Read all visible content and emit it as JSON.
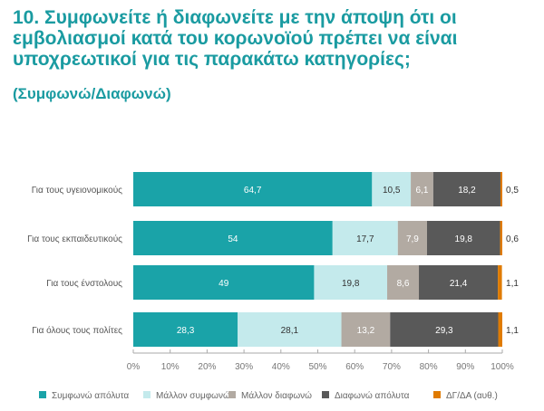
{
  "title": "10. Συμφωνείτε ή διαφωνείτε με την άποψη ότι οι εμβολιασμοί κατά του κορωνοϊού πρέπει να είναι υποχρεωτικοί για τις παρακάτω κατηγορίες;",
  "subtitle": "(Συμφωνώ/Διαφωνώ)",
  "chart_data": {
    "type": "bar",
    "orientation": "horizontal",
    "stacked": "percent",
    "categories": [
      "Για τους υγειονομικούς",
      "Για τους εκπαιδευτικούς",
      "Για τους ένστολους",
      "Για όλους τους πολίτες"
    ],
    "series": [
      {
        "name": "Συμφωνώ απόλυτα",
        "color": "#1aa3a8",
        "values": [
          64.7,
          54,
          49,
          28.3
        ],
        "labels": [
          "64,7",
          "54",
          "49",
          "28,3"
        ]
      },
      {
        "name": "Μάλλον συμφωνώ",
        "color": "#c4eaec",
        "values": [
          10.5,
          17.7,
          19.8,
          28.1
        ],
        "labels": [
          "10,5",
          "17,7",
          "19,8",
          "28,1"
        ]
      },
      {
        "name": "Μάλλον διαφωνώ",
        "color": "#b2aaa2",
        "values": [
          6.1,
          7.9,
          8.6,
          13.2
        ],
        "labels": [
          "6,1",
          "7,9",
          "8,6",
          "13,2"
        ]
      },
      {
        "name": "Διαφωνώ απόλυτα",
        "color": "#595959",
        "values": [
          18.2,
          19.8,
          21.4,
          29.3
        ],
        "labels": [
          "18,2",
          "19,8",
          "21,4",
          "29,3"
        ]
      },
      {
        "name": "ΔΓ/ΔΑ (αυθ.)",
        "color": "#e07b00",
        "values": [
          0.5,
          0.6,
          1.1,
          1.1
        ],
        "labels": [
          "0,5",
          "0,6",
          "1,1",
          "1,1"
        ]
      }
    ],
    "xlim": [
      0,
      100
    ],
    "xticks": [
      "0%",
      "10%",
      "20%",
      "30%",
      "40%",
      "50%",
      "60%",
      "70%",
      "80%",
      "90%",
      "100%"
    ],
    "grid": false,
    "legend": "bottom"
  }
}
